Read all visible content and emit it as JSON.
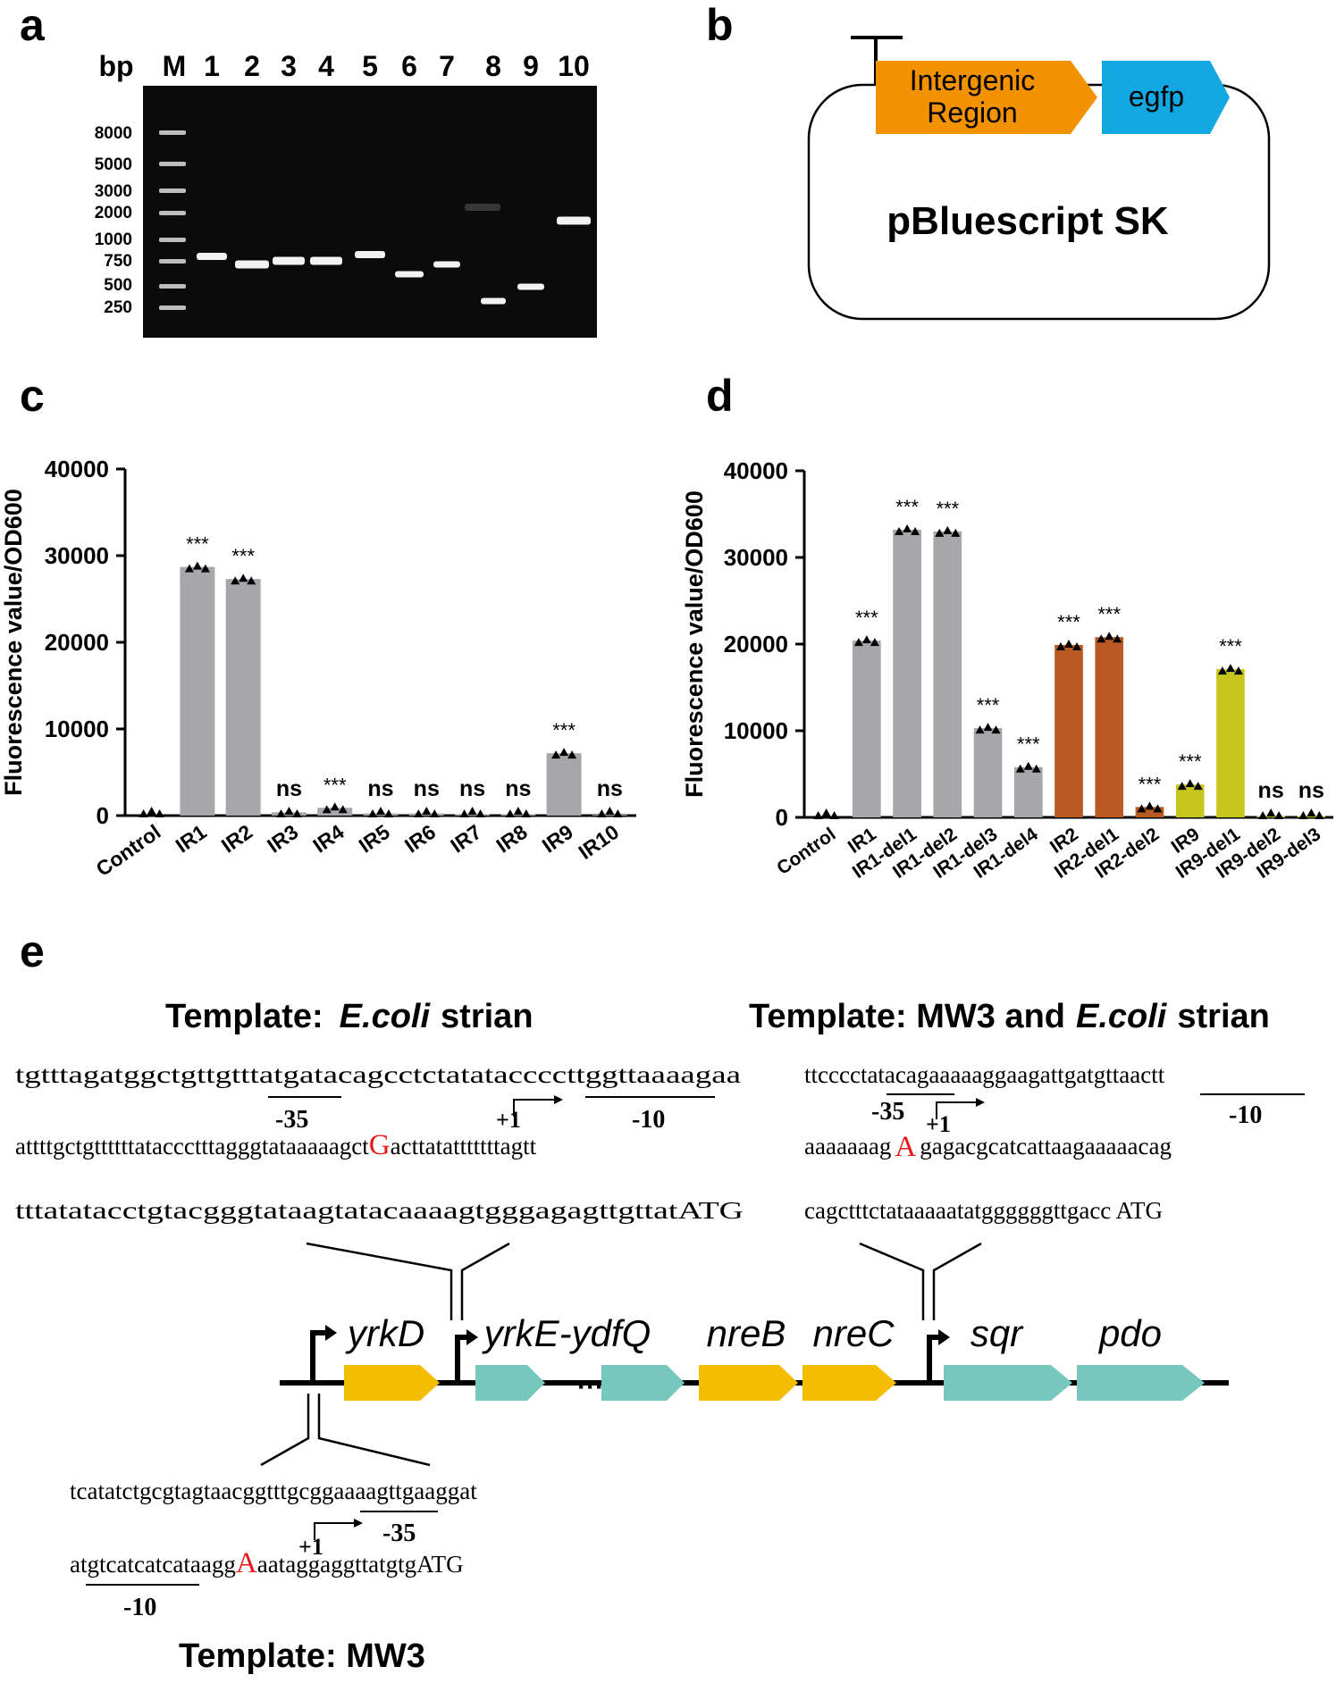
{
  "panel_labels": [
    "a",
    "b",
    "c",
    "d",
    "e"
  ],
  "panel_a": {
    "header": [
      "bp",
      "M",
      "1",
      "2",
      "3",
      "4",
      "5",
      "6",
      "7",
      "8",
      "9",
      "10"
    ],
    "bp_labels": [
      "8000",
      "5000",
      "3000",
      "2000",
      "1000",
      "750",
      "500",
      "250"
    ]
  },
  "panel_b": {
    "region_line1": "Intergenic",
    "region_line2": "Region",
    "gene": "egfp",
    "plasmid": "pBluescript SK"
  },
  "chart_data": [
    {
      "panel": "c",
      "type": "bar",
      "ylabel": "Fluorescence value/OD600",
      "ylim": [
        0,
        40000
      ],
      "yticks": [
        "0",
        "10000",
        "20000",
        "30000",
        "40000"
      ],
      "categories": [
        "Control",
        "IR1",
        "IR2",
        "IR3",
        "IR4",
        "IR5",
        "IR6",
        "IR7",
        "IR8",
        "IR9",
        "IR10"
      ],
      "values": [
        0,
        28700,
        27300,
        380,
        900,
        250,
        250,
        150,
        150,
        7200,
        100
      ],
      "significance": [
        "",
        "***",
        "***",
        "ns",
        "***",
        "ns",
        "ns",
        "ns",
        "ns",
        "***",
        "ns"
      ],
      "bar_colors": [
        "#a6a6ab",
        "#a6a6ab",
        "#a6a6ab",
        "#a6a6ab",
        "#a6a6ab",
        "#a6a6ab",
        "#a6a6ab",
        "#a6a6ab",
        "#a6a6ab",
        "#a6a6ab",
        "#a6a6ab"
      ]
    },
    {
      "panel": "d",
      "type": "bar",
      "ylabel": "Fluorescence value/OD600",
      "ylim": [
        0,
        40000
      ],
      "yticks": [
        "0",
        "10000",
        "20000",
        "30000",
        "40000"
      ],
      "categories": [
        "Control",
        "IR1",
        "IR1-del1",
        "IR1-del2",
        "IR1-del3",
        "IR1-del4",
        "IR2",
        "IR2-del1",
        "IR2-del2",
        "IR9",
        "IR9-del1",
        "IR9-del2",
        "IR9-del3"
      ],
      "values": [
        0,
        20400,
        33200,
        33000,
        10300,
        5800,
        19900,
        20800,
        1200,
        3800,
        17100,
        150,
        150
      ],
      "significance": [
        "",
        "***",
        "***",
        "***",
        "***",
        "***",
        "***",
        "***",
        "***",
        "***",
        "***",
        "ns",
        "ns"
      ],
      "bar_colors": [
        "#a6a6ab",
        "#a6a6ab",
        "#a6a6ab",
        "#a6a6ab",
        "#a6a6ab",
        "#a6a6ab",
        "#b85a22",
        "#b85a22",
        "#b85a22",
        "#c8c51e",
        "#c8c51e",
        "#c8c51e",
        "#c8c51e"
      ]
    }
  ],
  "panel_e": {
    "template_left": {
      "prefix": "Template:",
      "organism": "E.coli",
      "suffix": "strian"
    },
    "template_right": {
      "prefix": "Template:  MW3 and",
      "organism": "E.coli",
      "suffix": "strian"
    },
    "template_bottom": "Template:  MW3",
    "seq_left": {
      "line1": "tgtttagatggctgttgtttatgatacagcctctatataccccttggttaaaagaa",
      "line2_a": "attttgctgttttttataccctttagggtataaaaagct",
      "line2_tss": "G",
      "line2_b": "acttatatttttttagtt",
      "line3": "tttatatacctgtacgggtataagtatacaaaagtgggagagttgttatATG"
    },
    "seq_right": {
      "line1": "ttcccctatacagaaaaaggaagattgatgttaactt",
      "line2_a": "aaaaaaag",
      "line2_tss": "A",
      "line2_b": "gagacgcatcattaagaaaaacag",
      "line3": "cagctttctataaaaatatggggggttgacc ATG"
    },
    "seq_bottom": {
      "line1": "tcatatctgcgtagtaacggtttgcggaaaagttgaaggat",
      "line2_a": "atgtcatcatcataagg",
      "line2_tss": "A",
      "line2_b": "aataggaggttatgtgATG"
    },
    "box_minus35": "-35",
    "box_minus10": "-10",
    "tss_mark": "+1",
    "genes": [
      "yrkD",
      "yrkE-ydfQ",
      "nreB",
      "nreC",
      "sqr",
      "pdo"
    ],
    "ellipsis": "···",
    "colors": {
      "yellow": "#f5bd00",
      "teal": "#76c7bd",
      "orange": "#f39200",
      "blue": "#12a7e0",
      "tss_red": "#e8191a"
    }
  }
}
